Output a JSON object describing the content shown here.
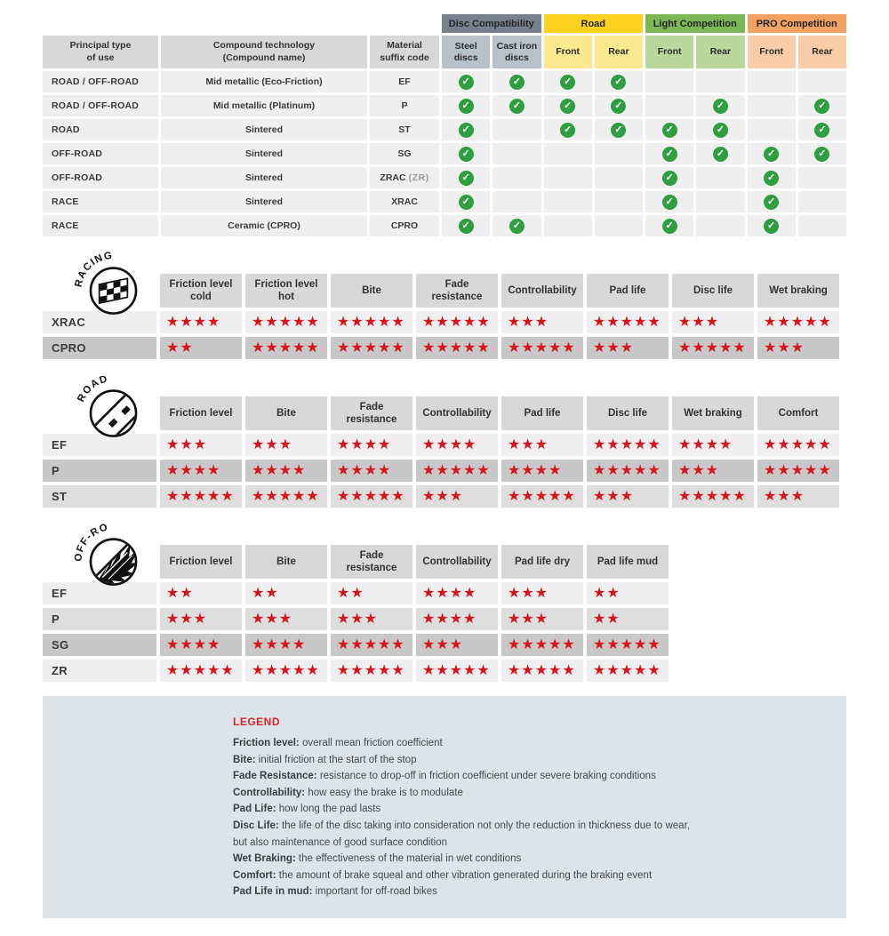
{
  "colors": {
    "star_red": "#d6161d",
    "check_green": "#2f9e41",
    "header_gray": "#d8d8d8",
    "row_light": "#efefef",
    "row_medium": "#dedede",
    "row_dark": "#c8c8c8",
    "legend_bg": "#dce4e9",
    "disc_slate": "#76838f",
    "disc_slate_light": "#b7c1c9",
    "road_yellow": "#fdd321",
    "road_yellow_light": "#fae98e",
    "light_comp_green": "#7cb858",
    "light_comp_green_light": "#bad89e",
    "pro_comp_orange": "#f2a263",
    "pro_comp_orange_light": "#f8cda7"
  },
  "compat_table": {
    "col_headers": [
      "Principal type\nof use",
      "Compound technology\n(Compound name)",
      "Material\nsuffix code"
    ],
    "groups": [
      {
        "label": "Disc Compatibility",
        "color": "#76838f",
        "sub_color": "#b7c1c9",
        "subs": [
          "Steel\ndiscs",
          "Cast iron\ndiscs"
        ]
      },
      {
        "label": "Road",
        "color": "#fdd321",
        "sub_color": "#fae98e",
        "subs": [
          "Front",
          "Rear"
        ]
      },
      {
        "label": "Light Competition",
        "color": "#7cb858",
        "sub_color": "#bad89e",
        "subs": [
          "Front",
          "Rear"
        ]
      },
      {
        "label": "PRO Competition",
        "color": "#f2a263",
        "sub_color": "#f8cda7",
        "subs": [
          "Front",
          "Rear"
        ]
      }
    ],
    "rows": [
      {
        "use": "ROAD / OFF-ROAD",
        "tech": "Mid metallic (Eco-Friction)",
        "code": "EF",
        "checks": [
          1,
          1,
          1,
          1,
          0,
          0,
          0,
          0
        ]
      },
      {
        "use": "ROAD / OFF-ROAD",
        "tech": "Mid metallic (Platinum)",
        "code": "P",
        "checks": [
          1,
          1,
          1,
          1,
          0,
          1,
          0,
          1
        ]
      },
      {
        "use": "ROAD",
        "tech": "Sintered",
        "code": "ST",
        "checks": [
          1,
          0,
          1,
          1,
          1,
          1,
          0,
          1
        ]
      },
      {
        "use": "OFF-ROAD",
        "tech": "Sintered",
        "code": "SG",
        "checks": [
          1,
          0,
          0,
          0,
          1,
          1,
          1,
          1
        ]
      },
      {
        "use": "OFF-ROAD",
        "tech": "Sintered",
        "code": "ZRAC",
        "code_note": "(ZR)",
        "checks": [
          1,
          0,
          0,
          0,
          1,
          0,
          1,
          0
        ]
      },
      {
        "use": "RACE",
        "tech": "Sintered",
        "code": "XRAC",
        "checks": [
          1,
          0,
          0,
          0,
          1,
          0,
          1,
          0
        ]
      },
      {
        "use": "RACE",
        "tech": "Ceramic (CPRO)",
        "code": "CPRO",
        "checks": [
          1,
          1,
          0,
          0,
          1,
          0,
          1,
          0
        ]
      }
    ]
  },
  "rating_tables": [
    {
      "badge": "RACING",
      "columns": [
        "Friction level cold",
        "Friction level hot",
        "Bite",
        "Fade resistance",
        "Controllability",
        "Pad life",
        "Disc life",
        "Wet braking"
      ],
      "rows": [
        {
          "label": "XRAC",
          "shade": "light",
          "stars": [
            4,
            5,
            5,
            5,
            3,
            5,
            3,
            5
          ]
        },
        {
          "label": "CPRO",
          "shade": "dark",
          "stars": [
            2,
            5,
            5,
            5,
            5,
            3,
            5,
            3
          ]
        }
      ]
    },
    {
      "badge": "ROAD",
      "columns": [
        "Friction level",
        "Bite",
        "Fade resistance",
        "Controllability",
        "Pad life",
        "Disc life",
        "Wet braking",
        "Comfort"
      ],
      "rows": [
        {
          "label": "EF",
          "shade": "light",
          "stars": [
            3,
            3,
            4,
            4,
            3,
            5,
            4,
            5
          ]
        },
        {
          "label": "P",
          "shade": "dark",
          "stars": [
            4,
            4,
            4,
            5,
            4,
            5,
            3,
            5
          ]
        },
        {
          "label": "ST",
          "shade": "medium",
          "stars": [
            5,
            5,
            5,
            3,
            5,
            3,
            5,
            3
          ]
        }
      ]
    },
    {
      "badge": "OFF-ROAD",
      "columns": [
        "Friction level",
        "Bite",
        "Fade resistance",
        "Controllability",
        "Pad life dry",
        "Pad life mud"
      ],
      "rows": [
        {
          "label": "EF",
          "shade": "light",
          "stars": [
            2,
            2,
            2,
            4,
            3,
            2
          ]
        },
        {
          "label": "P",
          "shade": "medium",
          "stars": [
            3,
            3,
            3,
            4,
            3,
            2
          ]
        },
        {
          "label": "SG",
          "shade": "dark",
          "stars": [
            4,
            4,
            5,
            3,
            5,
            5
          ]
        },
        {
          "label": "ZR",
          "shade": "light",
          "stars": [
            5,
            5,
            5,
            5,
            5,
            5
          ]
        }
      ]
    }
  ],
  "legend": {
    "title": "LEGEND",
    "items": [
      {
        "term": "Friction level:",
        "desc": "overall mean friction coefficient"
      },
      {
        "term": "Bite:",
        "desc": "initial friction at the start of the stop"
      },
      {
        "term": "Fade Resistance:",
        "desc": "resistance to drop-off in friction coefficient under severe braking conditions"
      },
      {
        "term": "Controllability:",
        "desc": "how easy the brake is to modulate"
      },
      {
        "term": "Pad Life:",
        "desc": "how long the pad lasts"
      },
      {
        "term": "Disc Life:",
        "desc": "the life of the disc taking into consideration not only the reduction in thickness due to wear,"
      },
      {
        "term": "",
        "desc": "but also maintenance of good surface condition"
      },
      {
        "term": "Wet Braking:",
        "desc": "the effectiveness of the material in wet conditions"
      },
      {
        "term": "Comfort:",
        "desc": "the amount of brake squeal and other vibration generated during the braking event"
      },
      {
        "term": "Pad Life in mud:",
        "desc": "important for off-road bikes"
      }
    ]
  }
}
